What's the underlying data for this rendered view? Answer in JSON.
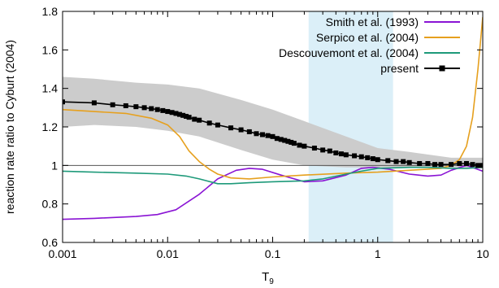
{
  "chart_data": {
    "type": "line",
    "title": "",
    "xlabel": "T",
    "xlabel_sub": "9",
    "ylabel": "reaction rate ratio to Cyburt (2004)",
    "xscale": "log",
    "xlim": [
      0.001,
      10
    ],
    "ylim": [
      0.6,
      1.8
    ],
    "x_ticks": [
      0.001,
      0.01,
      0.1,
      1,
      10
    ],
    "x_tick_labels": [
      "0.001",
      "0.01",
      "0.1",
      "1",
      "10"
    ],
    "y_ticks": [
      0.6,
      0.8,
      1,
      1.2,
      1.4,
      1.6,
      1.8
    ],
    "y_tick_labels": [
      "0.6",
      "0.8",
      "1",
      "1.2",
      "1.4",
      "1.6",
      "1.8"
    ],
    "legend_position": "top-right",
    "grid": false,
    "reference_line_y": 1.0,
    "highlight_band": {
      "x_start": 0.22,
      "x_end": 1.4,
      "color": "#dbeff8"
    },
    "uncertainty_band": {
      "color": "#cccccc",
      "x": [
        0.001,
        0.002,
        0.005,
        0.01,
        0.02,
        0.05,
        0.1,
        0.2,
        0.5,
        1,
        2,
        5,
        10
      ],
      "upper": [
        1.46,
        1.45,
        1.43,
        1.42,
        1.4,
        1.34,
        1.29,
        1.23,
        1.15,
        1.09,
        1.07,
        1.04,
        1.04
      ],
      "lower": [
        1.2,
        1.21,
        1.2,
        1.18,
        1.15,
        1.08,
        1.03,
        1.0,
        0.99,
        0.99,
        0.99,
        0.99,
        0.99
      ]
    },
    "series": [
      {
        "name": "Smith et al. (1993)",
        "color": "#8a14d4",
        "x": [
          0.001,
          0.002,
          0.005,
          0.008,
          0.012,
          0.02,
          0.03,
          0.045,
          0.06,
          0.08,
          0.12,
          0.2,
          0.3,
          0.5,
          0.7,
          0.9,
          1.3,
          2,
          3,
          4,
          5,
          7,
          10
        ],
        "y": [
          0.72,
          0.725,
          0.735,
          0.745,
          0.77,
          0.85,
          0.93,
          0.975,
          0.985,
          0.98,
          0.95,
          0.915,
          0.92,
          0.95,
          0.985,
          0.99,
          0.98,
          0.955,
          0.945,
          0.95,
          0.975,
          1.0,
          0.97
        ]
      },
      {
        "name": "Serpico et al. (2004)",
        "color": "#e6a01e",
        "x": [
          0.001,
          0.002,
          0.004,
          0.007,
          0.01,
          0.013,
          0.016,
          0.02,
          0.025,
          0.03,
          0.04,
          0.06,
          0.1,
          0.2,
          0.5,
          1,
          2,
          4,
          5,
          6,
          7,
          8,
          9,
          10
        ],
        "y": [
          1.29,
          1.28,
          1.27,
          1.245,
          1.21,
          1.15,
          1.075,
          1.02,
          0.98,
          0.955,
          0.935,
          0.93,
          0.94,
          0.95,
          0.96,
          0.965,
          0.975,
          0.985,
          1.0,
          1.03,
          1.1,
          1.25,
          1.5,
          1.77
        ]
      },
      {
        "name": "Descouvemont et al. (2004)",
        "color": "#1e9a7a",
        "x": [
          0.001,
          0.002,
          0.005,
          0.01,
          0.015,
          0.02,
          0.03,
          0.04,
          0.06,
          0.1,
          0.2,
          0.3,
          0.5,
          0.7,
          1,
          2,
          3,
          5,
          7,
          10
        ],
        "y": [
          0.97,
          0.965,
          0.96,
          0.955,
          0.945,
          0.93,
          0.905,
          0.905,
          0.91,
          0.915,
          0.92,
          0.93,
          0.955,
          0.97,
          0.985,
          0.99,
          0.99,
          0.985,
          0.985,
          0.99
        ]
      },
      {
        "name": "present",
        "color": "#000000",
        "marker": "square",
        "x": [
          0.001,
          0.002,
          0.003,
          0.004,
          0.005,
          0.006,
          0.007,
          0.008,
          0.009,
          0.01,
          0.011,
          0.012,
          0.013,
          0.014,
          0.015,
          0.016,
          0.018,
          0.02,
          0.025,
          0.03,
          0.04,
          0.05,
          0.06,
          0.07,
          0.08,
          0.09,
          0.1,
          0.11,
          0.12,
          0.13,
          0.14,
          0.15,
          0.16,
          0.18,
          0.2,
          0.25,
          0.3,
          0.35,
          0.4,
          0.45,
          0.5,
          0.6,
          0.7,
          0.8,
          0.9,
          1,
          1.25,
          1.5,
          1.75,
          2,
          2.5,
          3,
          3.5,
          4,
          5,
          6,
          7,
          8,
          9,
          10
        ],
        "y": [
          1.33,
          1.325,
          1.315,
          1.31,
          1.305,
          1.3,
          1.295,
          1.29,
          1.285,
          1.28,
          1.275,
          1.27,
          1.265,
          1.26,
          1.255,
          1.25,
          1.24,
          1.235,
          1.22,
          1.21,
          1.195,
          1.185,
          1.175,
          1.165,
          1.16,
          1.155,
          1.15,
          1.14,
          1.135,
          1.13,
          1.125,
          1.12,
          1.115,
          1.105,
          1.1,
          1.09,
          1.08,
          1.075,
          1.065,
          1.06,
          1.055,
          1.05,
          1.045,
          1.04,
          1.035,
          1.03,
          1.025,
          1.02,
          1.02,
          1.015,
          1.01,
          1.01,
          1.005,
          1.005,
          1.005,
          1.01,
          1.01,
          1.005,
          1.0,
          1.0
        ]
      }
    ]
  }
}
